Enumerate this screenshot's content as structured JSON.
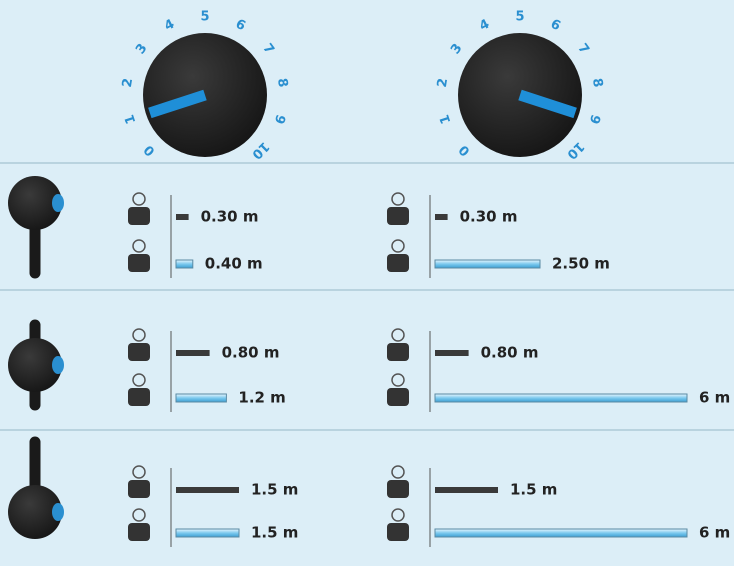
{
  "dial_ticks": [
    0,
    1,
    2,
    3,
    4,
    5,
    6,
    7,
    8,
    9,
    10
  ],
  "dials": [
    {
      "value": 1
    },
    {
      "value": 9
    }
  ],
  "rows": [
    {
      "panels": [
        {
          "values": [
            0.3,
            0.4
          ],
          "value_labels": [
            "0.30 m",
            "0.40 m"
          ]
        },
        {
          "values": [
            0.3,
            2.5
          ],
          "value_labels": [
            "0.30 m",
            "2.50 m"
          ]
        }
      ]
    },
    {
      "panels": [
        {
          "values": [
            0.8,
            1.2
          ],
          "value_labels": [
            "0.80 m",
            "1.2 m"
          ]
        },
        {
          "values": [
            0.8,
            6
          ],
          "value_labels": [
            "0.80 m",
            "6 m"
          ]
        }
      ]
    },
    {
      "panels": [
        {
          "values": [
            1.5,
            1.5
          ],
          "value_labels": [
            "1.5 m",
            "1.5 m"
          ]
        },
        {
          "values": [
            1.5,
            6
          ],
          "value_labels": [
            "1.5 m",
            "6 m"
          ]
        }
      ]
    }
  ]
}
